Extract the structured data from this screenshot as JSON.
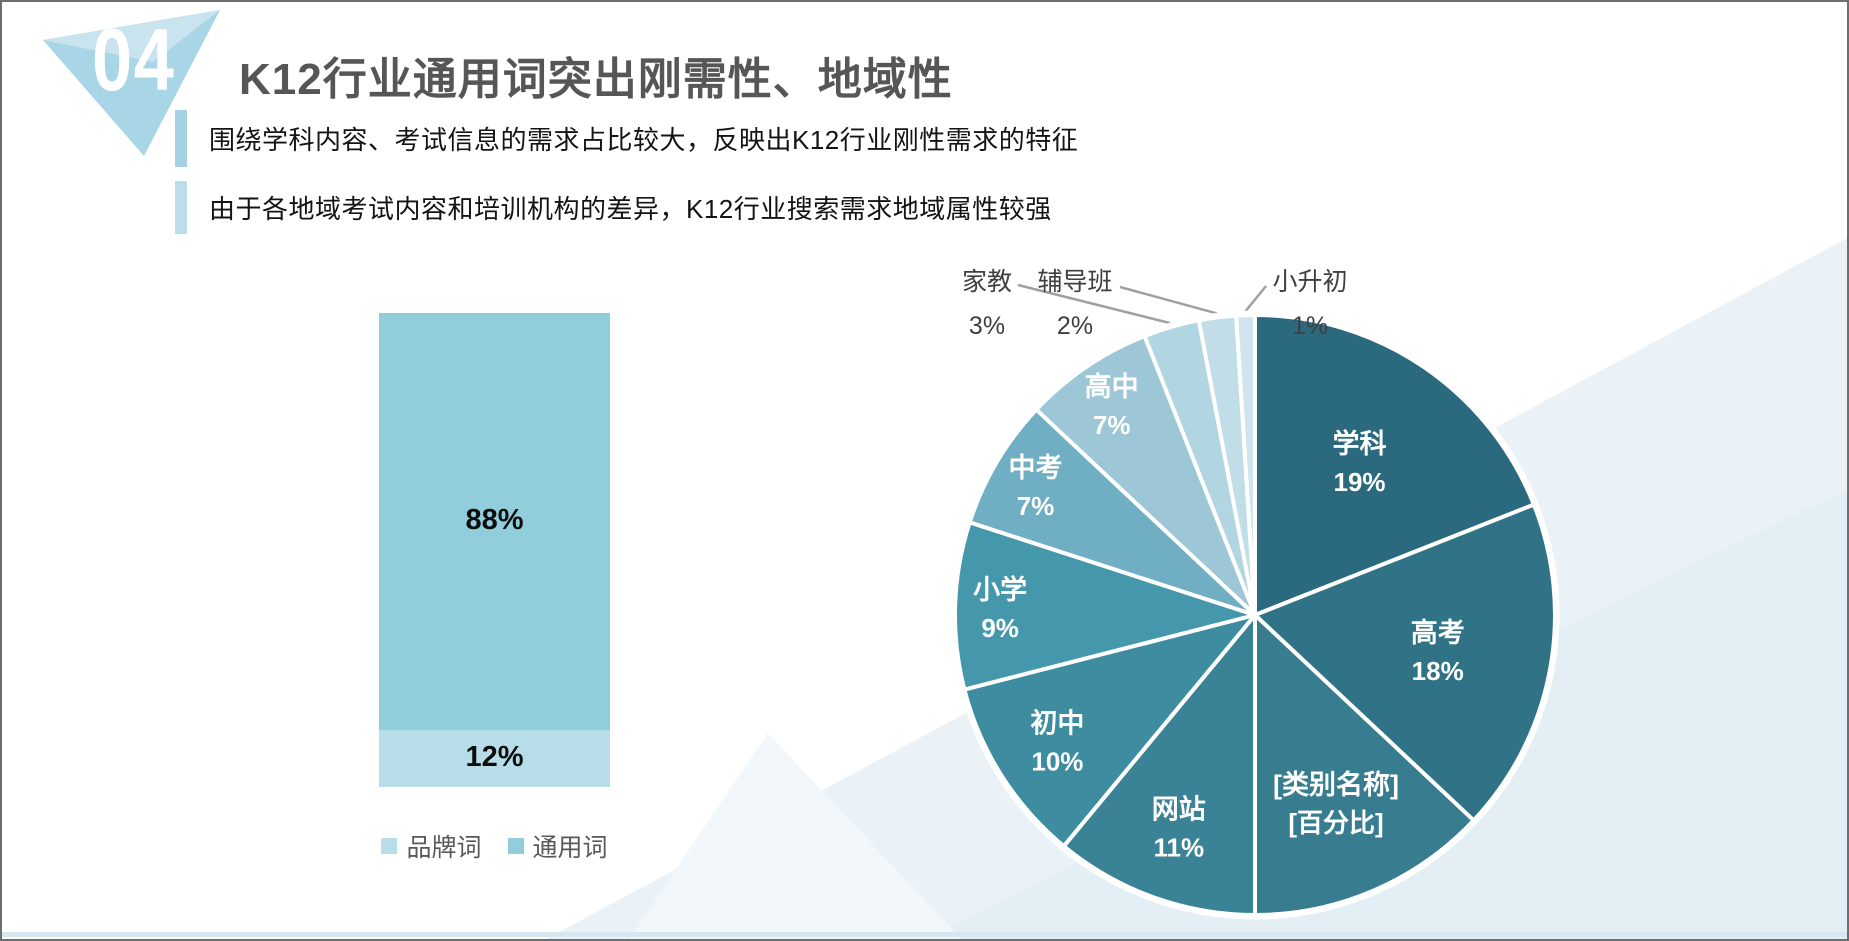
{
  "header": {
    "badge_number": "04",
    "title": "K12行业通用词突出刚需性、地域性"
  },
  "bullets": [
    "围绕学科内容、考试信息的需求占比较大，反映出K12行业刚性需求的特征",
    "由于各地域考试内容和培训机构的差异，K12行业搜索需求地域属性较强"
  ],
  "colors": {
    "badge_main": "#A9D6E6",
    "badge_facet": "#C9E3EF",
    "accent_bar_1": "#A5D2E3",
    "accent_bar_2": "#BDDDE9",
    "title_gray": "#565656",
    "outside_label_gray": "#3F3F3F",
    "leader_line_gray": "#A0A0A0",
    "background_triangle": "#EAF2F7"
  },
  "chart_data": [
    {
      "type": "bar",
      "subtype": "stacked-column-100",
      "categories": [
        ""
      ],
      "ylim": [
        0,
        100
      ],
      "grid": false,
      "legend_position": "bottom",
      "series": [
        {
          "name": "品牌词",
          "values": [
            12
          ],
          "data_label": "12%",
          "color": "#B7DEE8"
        },
        {
          "name": "通用词",
          "values": [
            88
          ],
          "data_label": "88%",
          "color": "#92CDDC"
        }
      ]
    },
    {
      "type": "pie",
      "start_angle_deg": 0,
      "direction": "clockwise",
      "grid": false,
      "slices": [
        {
          "label": "学科",
          "pct_label": "19%",
          "value": 19,
          "color": "#2B6A7E",
          "label_placement": "inside"
        },
        {
          "label": "高考",
          "pct_label": "18%",
          "value": 18,
          "color": "#317386",
          "label_placement": "inside"
        },
        {
          "label": "[类别名称]",
          "pct_label": "[百分比]",
          "value": 13,
          "color": "#377D8F",
          "label_placement": "inside"
        },
        {
          "label": "网站",
          "pct_label": "11%",
          "value": 11,
          "color": "#3A8396",
          "label_placement": "inside"
        },
        {
          "label": "初中",
          "pct_label": "10%",
          "value": 10,
          "color": "#3D8C9F",
          "label_placement": "inside"
        },
        {
          "label": "小学",
          "pct_label": "9%",
          "value": 9,
          "color": "#4598AC",
          "label_placement": "inside"
        },
        {
          "label": "中考",
          "pct_label": "7%",
          "value": 7,
          "color": "#6FAEC3",
          "label_placement": "inside"
        },
        {
          "label": "高中",
          "pct_label": "7%",
          "value": 7,
          "color": "#9DC7D7",
          "label_placement": "inside"
        },
        {
          "label": "家教",
          "pct_label": "3%",
          "value": 3,
          "color": "#B2D5E2",
          "label_placement": "outside"
        },
        {
          "label": "辅导班",
          "pct_label": "2%",
          "value": 2,
          "color": "#C1DDE8",
          "label_placement": "outside"
        },
        {
          "label": "小升初",
          "pct_label": "1%",
          "value": 1,
          "color": "#CFE4ED",
          "label_placement": "outside"
        }
      ]
    }
  ]
}
